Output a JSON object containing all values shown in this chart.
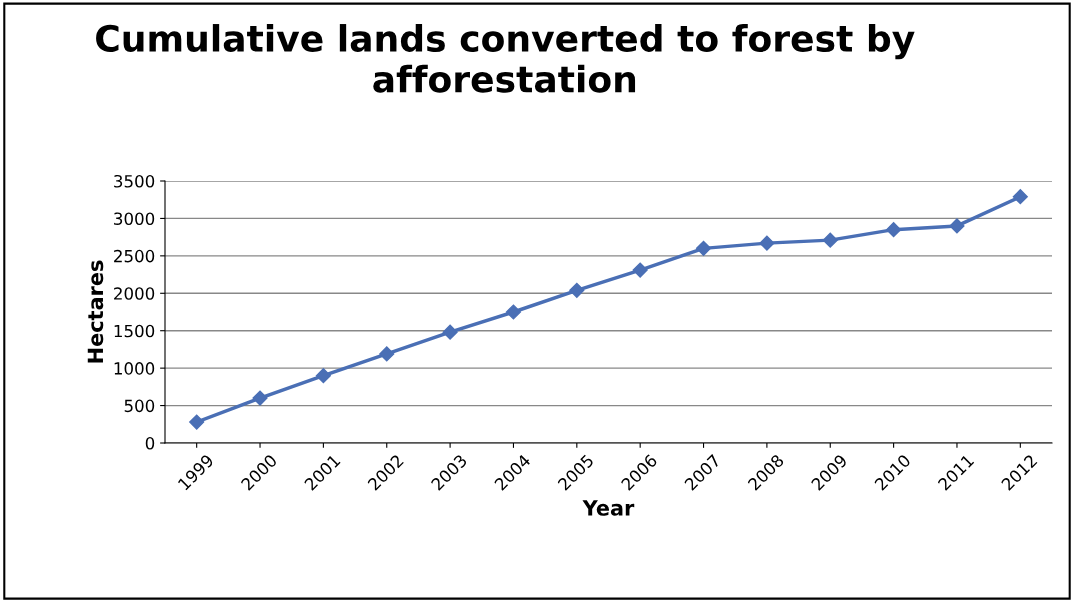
{
  "chart_data": {
    "type": "line",
    "title": "Cumulative lands converted to forest by afforestation",
    "xlabel": "Year",
    "ylabel": "Hectares",
    "categories": [
      "1999",
      "2000",
      "2001",
      "2002",
      "2003",
      "2004",
      "2005",
      "2006",
      "2007",
      "2008",
      "2009",
      "2010",
      "2011",
      "2012"
    ],
    "series": [
      {
        "color": "#4a6fb5",
        "values": [
          280,
          600,
          900,
          1190,
          1480,
          1750,
          2040,
          2310,
          2600,
          2670,
          2710,
          2850,
          2900,
          3290
        ]
      }
    ],
    "ylim": [
      0,
      3500
    ],
    "yticks": [
      0,
      500,
      1000,
      1500,
      2000,
      2500,
      3000,
      3500
    ],
    "grid": "y",
    "legend": false,
    "marker": "diamond",
    "line_style": "solid"
  }
}
